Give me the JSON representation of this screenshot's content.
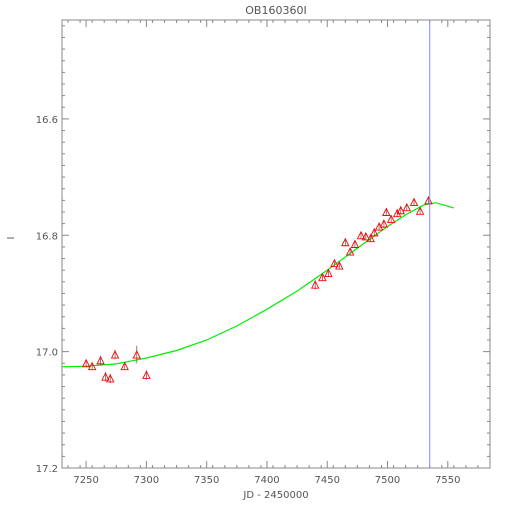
{
  "chart_data": {
    "type": "scatter",
    "title": "OB160360I",
    "xlabel": "JD - 2450000",
    "ylabel": "I",
    "xlim": [
      7230,
      7585
    ],
    "ylim": [
      17.2,
      16.43
    ],
    "y_inverted": true,
    "x_ticks": [
      7250,
      7300,
      7350,
      7400,
      7450,
      7500,
      7550
    ],
    "y_ticks": [
      16.6,
      16.8,
      17.0,
      17.2
    ],
    "x_tick_labels": [
      "7250",
      "7300",
      "7350",
      "7400",
      "7450",
      "7500",
      "7550"
    ],
    "y_tick_labels": [
      "16.6",
      "16.8",
      "17.0",
      "17.2"
    ],
    "grid": false,
    "colors": {
      "points": "#ff0000",
      "model": "#00ee00",
      "vline": "#8888ff",
      "frame": "#888888",
      "text": "#555555"
    },
    "points": [
      {
        "x": 7250,
        "y": 17.02,
        "err": 0.006
      },
      {
        "x": 7255,
        "y": 17.025,
        "err": 0.006
      },
      {
        "x": 7262,
        "y": 17.015,
        "err": 0.008
      },
      {
        "x": 7266,
        "y": 17.043,
        "err": 0.008
      },
      {
        "x": 7270,
        "y": 17.046,
        "err": 0.008
      },
      {
        "x": 7274,
        "y": 17.005,
        "err": 0.008
      },
      {
        "x": 7282,
        "y": 17.025,
        "err": 0.006
      },
      {
        "x": 7292,
        "y": 17.005,
        "err": 0.015
      },
      {
        "x": 7300,
        "y": 17.04,
        "err": 0.008
      },
      {
        "x": 7440,
        "y": 16.885,
        "err": 0.008
      },
      {
        "x": 7446,
        "y": 16.872,
        "err": 0.006
      },
      {
        "x": 7451,
        "y": 16.865,
        "err": 0.006
      },
      {
        "x": 7456,
        "y": 16.848,
        "err": 0.006
      },
      {
        "x": 7460,
        "y": 16.852,
        "err": 0.006
      },
      {
        "x": 7465,
        "y": 16.812,
        "err": 0.006
      },
      {
        "x": 7469,
        "y": 16.828,
        "err": 0.006
      },
      {
        "x": 7473,
        "y": 16.815,
        "err": 0.006
      },
      {
        "x": 7478,
        "y": 16.8,
        "err": 0.006
      },
      {
        "x": 7482,
        "y": 16.802,
        "err": 0.006
      },
      {
        "x": 7486,
        "y": 16.805,
        "err": 0.006
      },
      {
        "x": 7489,
        "y": 16.795,
        "err": 0.006
      },
      {
        "x": 7493,
        "y": 16.785,
        "err": 0.006
      },
      {
        "x": 7497,
        "y": 16.78,
        "err": 0.006
      },
      {
        "x": 7499,
        "y": 16.76,
        "err": 0.006
      },
      {
        "x": 7503,
        "y": 16.772,
        "err": 0.006
      },
      {
        "x": 7508,
        "y": 16.762,
        "err": 0.006
      },
      {
        "x": 7511,
        "y": 16.757,
        "err": 0.006
      },
      {
        "x": 7516,
        "y": 16.752,
        "err": 0.006
      },
      {
        "x": 7522,
        "y": 16.743,
        "err": 0.006
      },
      {
        "x": 7527,
        "y": 16.758,
        "err": 0.006
      },
      {
        "x": 7534,
        "y": 16.74,
        "err": 0.006
      }
    ],
    "model_curve": [
      [
        7230,
        17.026
      ],
      [
        7250,
        17.025
      ],
      [
        7275,
        17.021
      ],
      [
        7300,
        17.011
      ],
      [
        7325,
        16.998
      ],
      [
        7350,
        16.98
      ],
      [
        7375,
        16.956
      ],
      [
        7400,
        16.927
      ],
      [
        7425,
        16.896
      ],
      [
        7450,
        16.86
      ],
      [
        7475,
        16.822
      ],
      [
        7500,
        16.785
      ],
      [
        7515,
        16.765
      ],
      [
        7530,
        16.748
      ],
      [
        7540,
        16.744
      ],
      [
        7550,
        16.75
      ],
      [
        7555,
        16.753
      ]
    ],
    "vline_x": 7535
  }
}
